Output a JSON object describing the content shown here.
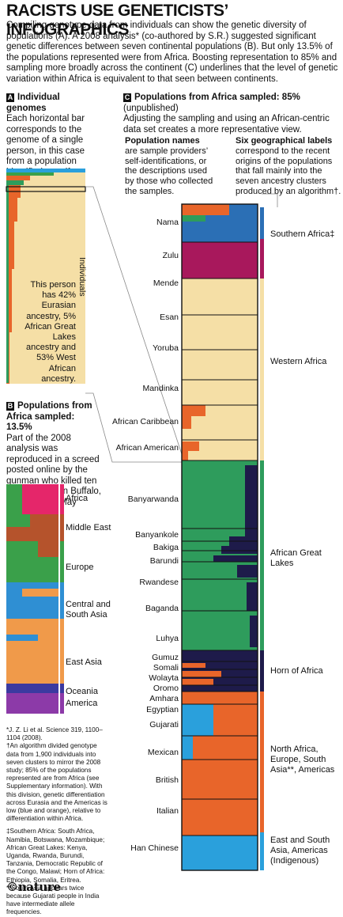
{
  "title": "RACISTS USE GENETICISTS’ INFOGRAPHICS",
  "intro": "Compiling genotype data from individuals can show the genetic diversity of populations (A). A 2008 analysis* (co-authored by S.R.) suggested significant genetic differences between seven continental populations (B). But only 13.5% of the populations represented were from Africa. Boosting representation to 85% and sampling more broadly across the continent (C) underlines that the level of genetic variation within Africa is equivalent to that seen between continents.",
  "panel_a": {
    "tag": "A",
    "heading": "Individual genomes",
    "body": "Each horizontal bar corresponds to the genome of a single person, in this case from a population identified or self-identified as African American.",
    "axis_label": "Individuals",
    "callout": "This person has 42% Eurasian ancestry, 5% African Great Lakes ancestry and 53% West African ancestry."
  },
  "panel_b": {
    "tag": "B",
    "heading": "Populations from Africa sampled: 13.5%",
    "body": "Part of the 2008 analysis was reproduced in a screed posted online by the gunman who killed ten Black people in Buffalo, New York, in May 2022.",
    "groups": [
      {
        "label": "Africa",
        "color": "#e5266a"
      },
      {
        "label": "Middle East",
        "color": "#b5532c"
      },
      {
        "label": "Europe",
        "color": "#3aa04a"
      },
      {
        "label": "Central and South Asia",
        "color": "#2f8fd3"
      },
      {
        "label": "East Asia",
        "color": "#f09a4a"
      },
      {
        "label": "Oceania",
        "color": "#3b3aa0"
      },
      {
        "label": "America",
        "color": "#8c3aa8"
      }
    ]
  },
  "panel_c": {
    "tag": "C",
    "heading": "Populations from Africa sampled: 85%",
    "heading_note": " (unpublished)",
    "body": "Adjusting the sampling and using an African-centric data set creates a more representative view.",
    "names_heading": "Population names",
    "names_body": "are sample providers’ self-identifications, or the descriptions used by those who collected the samples.",
    "geo_heading": "Six geographical labels",
    "geo_body": "correspond to the recent origins of the populations that fall mainly into the seven ancestry clusters produced by an algorithm†.",
    "populations": [
      "Nama",
      "Zulu",
      "Mende",
      "Esan",
      "Yoruba",
      "Mandinka",
      "African Caribbean",
      "African American",
      "Banyarwanda",
      "Banyankole",
      "Bakiga",
      "Barundi",
      "Rwandese",
      "Baganda",
      "Luhya",
      "Gumuz",
      "Somali",
      "Wolayta",
      "Oromo",
      "Amhara",
      "Egyptian",
      "Gujarati",
      "Mexican",
      "British",
      "Italian",
      "Han Chinese"
    ],
    "regions": [
      {
        "label": "Southern Africa‡",
        "color": "#a8185c"
      },
      {
        "label": "Western Africa",
        "color": "#f5dfa6"
      },
      {
        "label": "African Great Lakes",
        "color": "#2e9c5c"
      },
      {
        "label": "Horn of Africa",
        "color": "#1e1b4a"
      },
      {
        "label": "North Africa, Europe, South Asia**, Americas",
        "color": "#e8652a"
      },
      {
        "label": "East and South Asia, Americas (Indigenous)",
        "color": "#2aa0dc"
      }
    ]
  },
  "footnotes": {
    "f1": "*J. Z. Li et al. Science 319, 1100–1104 (2008).",
    "f2": "†An algorithm divided genotype data from 1,900 individuals into seven clusters to mirror the 2008 study; 85% of the populations represented are from Africa (see Supplementary information). With this division, genetic differentiation across Eurasia and the Americas is low (blue and orange), relative to differentiation within Africa.",
    "f3": "‡Southern Africa: South Africa, Namibia, Botswana, Mozambique; African Great Lakes: Kenya, Uganda, Rwanda, Burundi, Tanzania, Democratic Republic of the Congo, Malawi; Horn of Africa: Ethiopia, Somalia, Eritrea.",
    "f4": "**South Asia appears twice because Gujarati people in India have intermediate allele frequencies."
  },
  "credit": "©nature",
  "colors": {
    "western": "#f5dfa6",
    "greatlakes": "#2e9c5c",
    "horn": "#1e1b4a",
    "northafrica": "#e8652a",
    "eastasia": "#2aa0dc",
    "southern": "#a8185c",
    "nama_blue": "#2b6fb5"
  }
}
